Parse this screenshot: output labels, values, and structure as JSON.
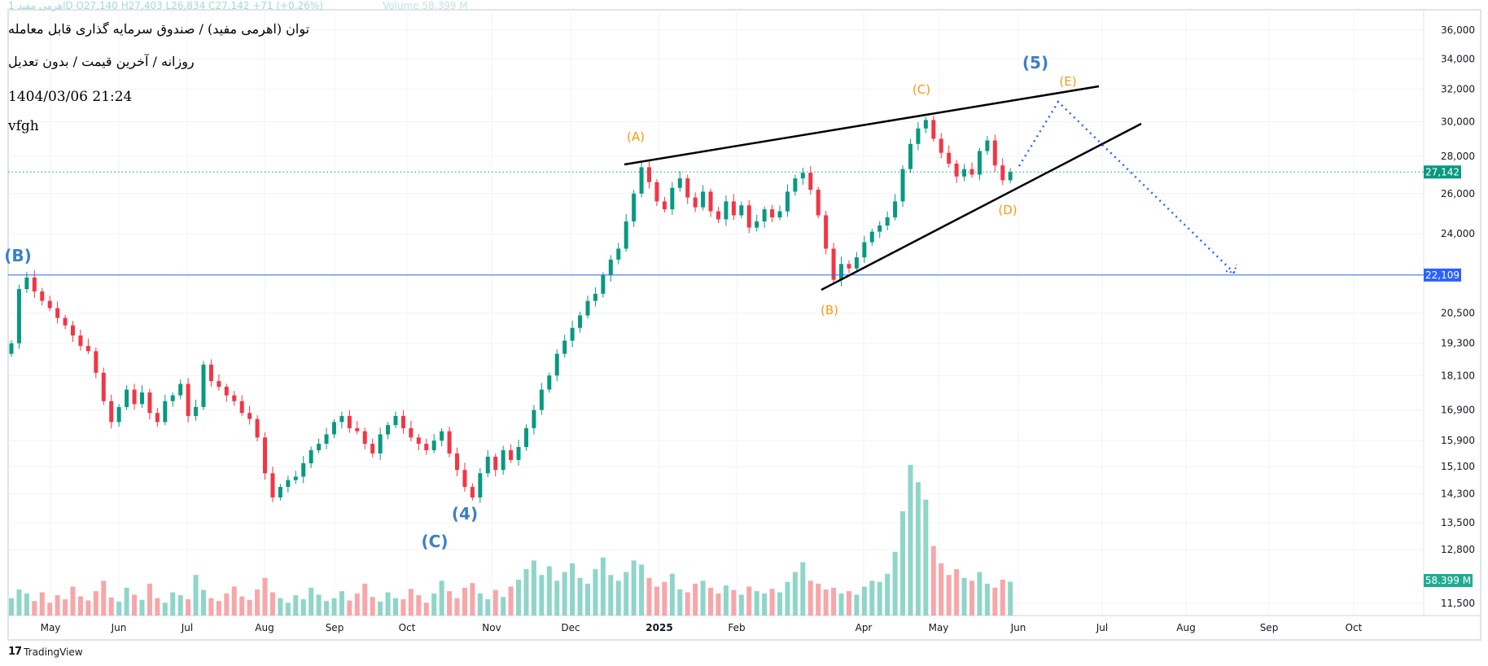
{
  "header": {
    "ohlc_line": "اهرمی مفید 1D  O27,140  H27,403  L26,834  C27,142  +71 (+0.26%)",
    "volume_line": "Volume 58.399 M",
    "title": "توان (اهرمی مفید) / صندوق سرمایه گذاری قابل معامله",
    "subtitle": "روزانه / آخرین قیمت / بدون تعدیل",
    "datetime": "1404/03/06 21:24",
    "note": "vfgh"
  },
  "colors": {
    "up": "#089981",
    "down": "#f23645",
    "vol_up": "#8fd5c9",
    "vol_down": "#f7a6a9",
    "wave_orange": "#f59a12",
    "wave_blue": "#3d7fc6",
    "hline": "#2962ff",
    "dotted_proj": "#2962ff"
  },
  "chart_data": {
    "type": "candlestick",
    "scale": "log",
    "price_ticks": [
      36000,
      34000,
      32000,
      30000,
      28000,
      26000,
      24000,
      20500,
      19300,
      18100,
      16900,
      15900,
      15100,
      14300,
      13500,
      12800,
      11500
    ],
    "price_tick_labels": [
      "36,000",
      "34,000",
      "32,000",
      "30,000",
      "28,000",
      "26,000",
      "24,000",
      "20,500",
      "19,300",
      "18,100",
      "16,900",
      "15,900",
      "15,100",
      "14,300",
      "13,500",
      "12,800",
      "11,500"
    ],
    "x_labels": [
      "May",
      "Jun",
      "Jul",
      "Aug",
      "Sep",
      "Oct",
      "Nov",
      "Dec",
      "2025",
      "Feb",
      "Apr",
      "May",
      "Jun",
      "Jul",
      "Aug",
      "Sep",
      "Oct"
    ],
    "closes": [
      19300,
      21500,
      22000,
      21400,
      21000,
      20700,
      20300,
      20000,
      19600,
      19200,
      19000,
      18200,
      17200,
      16500,
      17000,
      17600,
      17100,
      17500,
      16800,
      16500,
      17200,
      17400,
      17800,
      16700,
      17000,
      18500,
      17900,
      17700,
      17400,
      17200,
      16800,
      16600,
      16000,
      14900,
      14200,
      14500,
      14700,
      14800,
      15200,
      15600,
      15800,
      16100,
      16500,
      16700,
      16300,
      16200,
      15800,
      15500,
      16100,
      16400,
      16700,
      16300,
      16000,
      15800,
      15600,
      15900,
      16200,
      15500,
      15000,
      14500,
      14200,
      14900,
      15400,
      15000,
      15600,
      15300,
      15700,
      16300,
      16900,
      17600,
      18100,
      18900,
      19400,
      19900,
      20400,
      21000,
      21300,
      22100,
      22800,
      23300,
      24600,
      26000,
      27400,
      26600,
      25600,
      25200,
      26300,
      26800,
      25800,
      25300,
      26100,
      25100,
      24700,
      25600,
      24900,
      25400,
      24300,
      24600,
      25200,
      24800,
      25100,
      26100,
      26800,
      27100,
      26200,
      24900,
      23300,
      21900,
      22600,
      22400,
      22900,
      23600,
      24100,
      24400,
      24800,
      25600,
      27300,
      28700,
      29600,
      30100,
      29000,
      28200,
      27600,
      26900,
      27300,
      27000,
      28300,
      28900,
      27500,
      26700,
      27142
    ],
    "volumes_m": [
      30,
      45,
      38,
      25,
      40,
      22,
      35,
      28,
      50,
      33,
      26,
      42,
      60,
      31,
      24,
      48,
      36,
      27,
      55,
      30,
      22,
      40,
      35,
      28,
      70,
      44,
      30,
      25,
      38,
      50,
      33,
      27,
      45,
      65,
      40,
      30,
      22,
      35,
      28,
      48,
      36,
      25,
      30,
      42,
      26,
      38,
      55,
      32,
      24,
      40,
      30,
      28,
      46,
      35,
      22,
      38,
      60,
      42,
      30,
      48,
      56,
      38,
      28,
      44,
      32,
      50,
      62,
      80,
      95,
      70,
      85,
      60,
      75,
      90,
      65,
      55,
      80,
      100,
      70,
      60,
      75,
      95,
      88,
      65,
      50,
      58,
      72,
      45,
      40,
      55,
      60,
      48,
      38,
      52,
      44,
      36,
      50,
      42,
      38,
      46,
      40,
      58,
      75,
      92,
      60,
      55,
      45,
      48,
      38,
      42,
      36,
      50,
      60,
      58,
      72,
      110,
      180,
      260,
      230,
      200,
      120,
      90,
      70,
      80,
      65,
      60,
      75,
      55,
      48,
      62,
      58.399
    ],
    "last_price_label": "27,142",
    "hline_price": 22109,
    "hline_label": "22,109",
    "volume_label": "58.399 M"
  },
  "annotations": {
    "A": "(A)",
    "B_orange": "(B)",
    "C_orange": "(C)",
    "D": "(D)",
    "E": "(E)",
    "wave5": "(5)",
    "wave4": "(4)",
    "C_blue": "(C)",
    "B_blue": "(B)"
  },
  "footer": {
    "logo_text": "TradingView",
    "logo_mark": "17"
  }
}
